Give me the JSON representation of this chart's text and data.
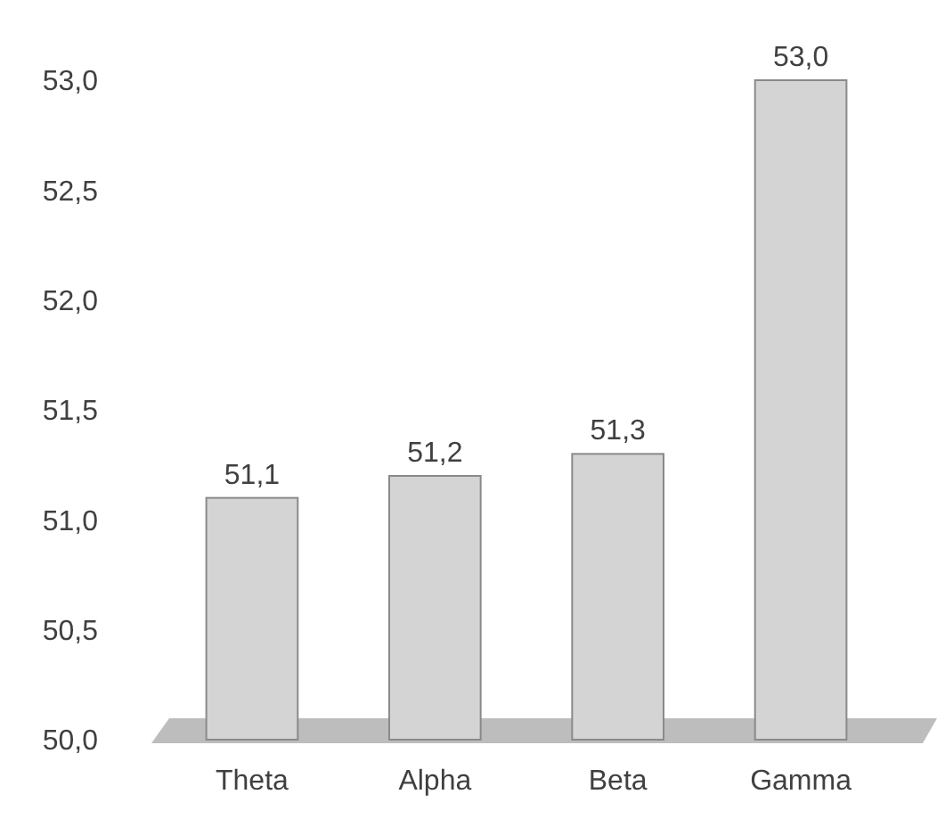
{
  "chart_data": {
    "type": "bar",
    "categories": [
      "Theta",
      "Alpha",
      "Beta",
      "Gamma"
    ],
    "values": [
      51.1,
      51.2,
      51.3,
      53.0
    ],
    "color": "#d4d4d4",
    "value_labels": [
      "51,1",
      "51,2",
      "51,3",
      "53,0"
    ],
    "ylim": [
      50,
      53
    ],
    "yticks": [
      {
        "value": 50,
        "label": "50,0"
      },
      {
        "value": 50.5,
        "label": "50,5"
      },
      {
        "value": 51,
        "label": "51,0"
      },
      {
        "value": 51.5,
        "label": "51,5"
      },
      {
        "value": 52,
        "label": "52,0"
      },
      {
        "value": 52.5,
        "label": "52,5"
      },
      {
        "value": 53,
        "label": "53,0"
      }
    ],
    "grid": false
  }
}
